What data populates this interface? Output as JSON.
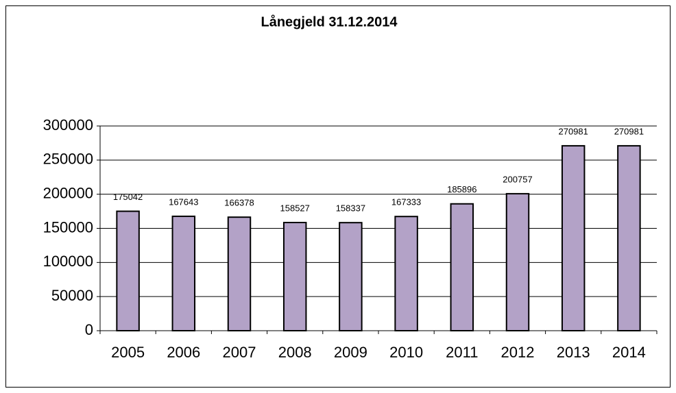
{
  "chart_data": {
    "type": "bar",
    "title": "Lånegjeld 31.12.2014",
    "categories": [
      "2005",
      "2006",
      "2007",
      "2008",
      "2009",
      "2010",
      "2011",
      "2012",
      "2013",
      "2014"
    ],
    "values": [
      175042,
      167643,
      166378,
      158527,
      158337,
      167333,
      185896,
      200757,
      270981,
      270981
    ],
    "color": "#b3a2c7",
    "ylim": [
      0,
      300000
    ],
    "yticks": [
      0,
      50000,
      100000,
      150000,
      200000,
      250000,
      300000
    ],
    "grid": true
  }
}
